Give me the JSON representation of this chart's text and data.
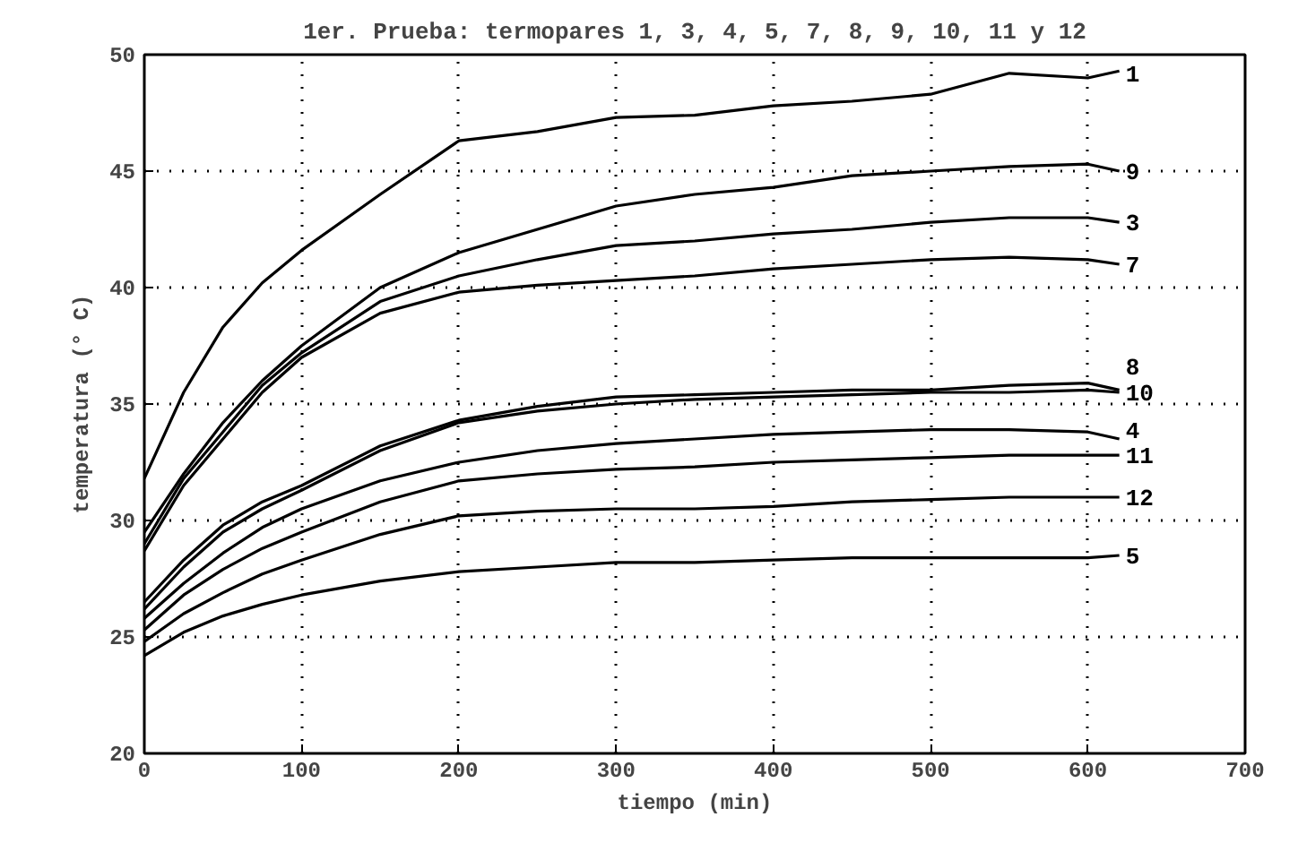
{
  "chart_data": {
    "type": "line",
    "title": "1er. Prueba: termopares 1, 3, 4, 5, 7, 8, 9, 10, 11 y 12",
    "xlabel": "tiempo (min)",
    "ylabel": "temperatura (° C)",
    "x": [
      0,
      25,
      50,
      75,
      100,
      150,
      200,
      250,
      300,
      350,
      400,
      450,
      500,
      550,
      600,
      620
    ],
    "series": [
      {
        "name": "1",
        "color": "#000000",
        "values": [
          31.8,
          35.5,
          38.3,
          40.2,
          41.6,
          44.0,
          46.3,
          46.7,
          47.3,
          47.4,
          47.8,
          48.0,
          48.3,
          49.2,
          49.0,
          49.3
        ]
      },
      {
        "name": "9",
        "color": "#000000",
        "values": [
          29.5,
          32.0,
          34.2,
          36.0,
          37.5,
          40.0,
          41.5,
          42.5,
          43.5,
          44.0,
          44.3,
          44.8,
          45.0,
          45.2,
          45.3,
          45.0
        ]
      },
      {
        "name": "3",
        "color": "#000000",
        "values": [
          29.0,
          31.8,
          33.8,
          35.8,
          37.2,
          39.4,
          40.5,
          41.2,
          41.8,
          42.0,
          42.3,
          42.5,
          42.8,
          43.0,
          43.0,
          42.8
        ]
      },
      {
        "name": "7",
        "color": "#000000",
        "values": [
          28.7,
          31.5,
          33.5,
          35.5,
          37.0,
          38.9,
          39.8,
          40.1,
          40.3,
          40.5,
          40.8,
          41.0,
          41.2,
          41.3,
          41.2,
          41.0
        ]
      },
      {
        "name": "8",
        "color": "#000000",
        "values": [
          26.5,
          28.3,
          29.8,
          30.8,
          31.5,
          33.2,
          34.3,
          34.9,
          35.3,
          35.4,
          35.5,
          35.6,
          35.6,
          35.8,
          35.9,
          35.6
        ]
      },
      {
        "name": "10",
        "color": "#000000",
        "values": [
          26.2,
          28.0,
          29.5,
          30.5,
          31.3,
          33.0,
          34.2,
          34.7,
          35.0,
          35.2,
          35.3,
          35.4,
          35.5,
          35.5,
          35.6,
          35.5
        ]
      },
      {
        "name": "4",
        "color": "#000000",
        "values": [
          25.8,
          27.3,
          28.6,
          29.7,
          30.5,
          31.7,
          32.5,
          33.0,
          33.3,
          33.5,
          33.7,
          33.8,
          33.9,
          33.9,
          33.8,
          33.5
        ]
      },
      {
        "name": "11",
        "color": "#000000",
        "values": [
          25.3,
          26.8,
          27.9,
          28.8,
          29.5,
          30.8,
          31.7,
          32.0,
          32.2,
          32.3,
          32.5,
          32.6,
          32.7,
          32.8,
          32.8,
          32.8
        ]
      },
      {
        "name": "12",
        "color": "#000000",
        "values": [
          24.8,
          26.0,
          26.9,
          27.7,
          28.3,
          29.4,
          30.2,
          30.4,
          30.5,
          30.5,
          30.6,
          30.8,
          30.9,
          31.0,
          31.0,
          31.0
        ]
      },
      {
        "name": "5",
        "color": "#000000",
        "values": [
          24.2,
          25.2,
          25.9,
          26.4,
          26.8,
          27.4,
          27.8,
          28.0,
          28.2,
          28.2,
          28.3,
          28.4,
          28.4,
          28.4,
          28.4,
          28.5
        ]
      }
    ],
    "xlim": [
      0,
      700
    ],
    "ylim": [
      20,
      50
    ],
    "xticks": [
      0,
      100,
      200,
      300,
      400,
      500,
      600,
      700
    ],
    "yticks": [
      20,
      25,
      30,
      35,
      40,
      45,
      50
    ],
    "grid": true,
    "marker": "none",
    "line_style": "solid"
  }
}
